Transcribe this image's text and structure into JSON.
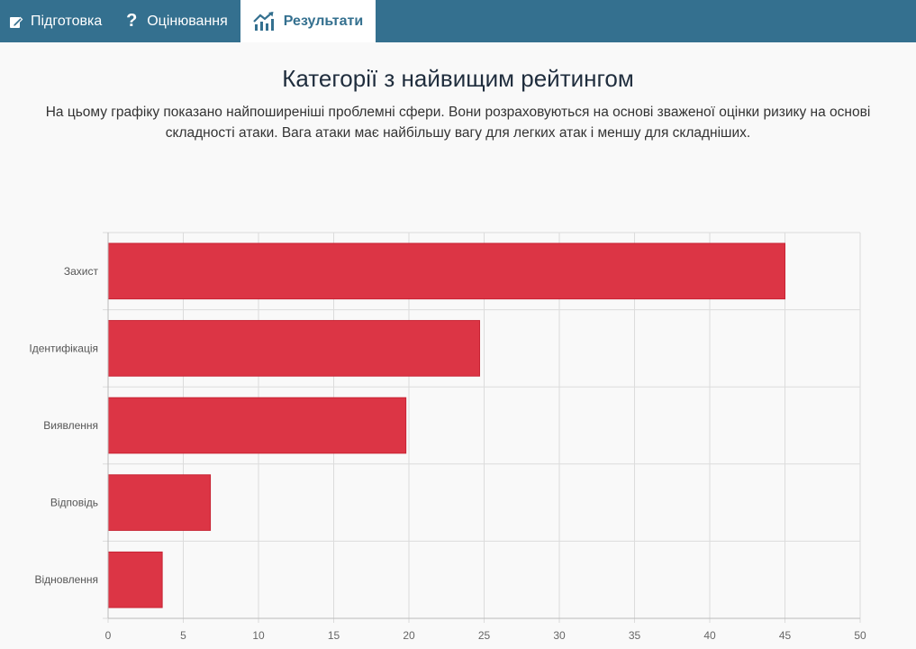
{
  "nav": {
    "tabs": [
      {
        "label": "Підготовка",
        "icon": "edit-icon",
        "active": false
      },
      {
        "label": "Оцінювання",
        "icon": "question-icon",
        "active": false
      },
      {
        "label": "Результати",
        "icon": "chart-trend-icon",
        "active": true
      }
    ]
  },
  "main": {
    "title": "Категорії з найвищим рейтингом",
    "description": "На цьому графіку показано найпоширеніші проблемні сфери. Вони розраховуються на основі зваженої оцінки ризику на основі складності атаки. Вага атаки має найбільшу вагу для легких атак і меншу для складніших."
  },
  "colors": {
    "nav_bg": "#34708f",
    "bar": "#dc3545",
    "page_bg": "#f9f9f9"
  },
  "chart_data": {
    "type": "bar",
    "orientation": "horizontal",
    "categories": [
      "Захист",
      "Ідентифікація",
      "Виявлення",
      "Відповідь",
      "Відновлення"
    ],
    "values": [
      45,
      24.7,
      19.8,
      6.8,
      3.6
    ],
    "xlim": [
      0,
      50
    ],
    "xticks": [
      "0",
      "5",
      "10",
      "15",
      "20",
      "25",
      "30",
      "35",
      "40",
      "45",
      "50"
    ],
    "grid": true,
    "legend": "none",
    "title": "",
    "xlabel": "",
    "ylabel": ""
  }
}
